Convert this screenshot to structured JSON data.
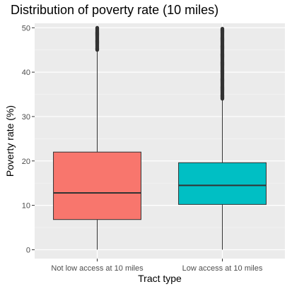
{
  "chart_data": {
    "type": "box",
    "title": "Distribution of poverty rate (10 miles)",
    "xlabel": "Tract type",
    "ylabel": "Poverty rate (%)",
    "ylim": [
      -2,
      51
    ],
    "yticks": [
      0,
      10,
      20,
      30,
      40,
      50
    ],
    "grid": true,
    "categories": [
      "Not low access at 10 miles",
      "Low access at 10 miles"
    ],
    "boxes": [
      {
        "category": "Not low access at 10 miles",
        "min": 0,
        "q1": 6.8,
        "median": 12.8,
        "q3": 22.0,
        "whisker_high": 45.0,
        "outliers_range": [
          45.0,
          50.0
        ],
        "color": "#F8766D"
      },
      {
        "category": "Low access at 10 miles",
        "min": 0,
        "q1": 10.2,
        "median": 14.5,
        "q3": 19.6,
        "whisker_high": 34.0,
        "outliers_range": [
          34.0,
          49.8
        ],
        "color": "#00BFC4"
      }
    ]
  }
}
